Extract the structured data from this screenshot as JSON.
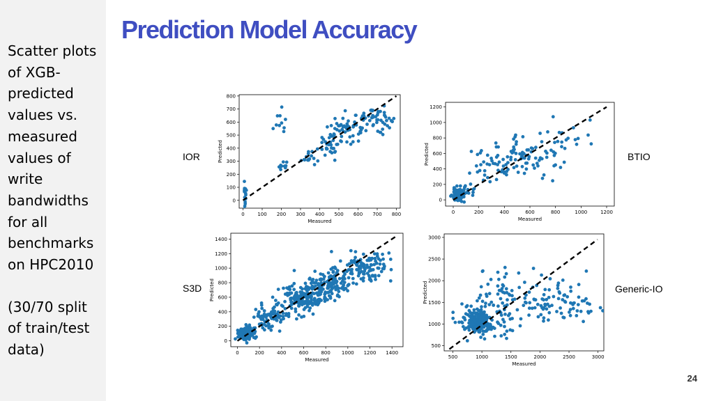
{
  "slide": {
    "title": "Prediction Model Accuracy",
    "sidebar_lines_1": [
      "Scatter plots",
      "of XGB-",
      "predicted",
      "values vs.",
      "measured",
      "values of",
      "write",
      "bandwidths",
      "for all",
      "benchmarks",
      "on HPC2010"
    ],
    "sidebar_lines_2": [
      "(30/70 split",
      "of train/test",
      "data)"
    ],
    "page_number": "24",
    "colors": {
      "title": "#3f4ec1",
      "points": "#1f77b4",
      "sidebar_bg": "#f2f2f2"
    }
  },
  "chart_data": [
    {
      "id": "ior",
      "type": "scatter",
      "label": "IOR",
      "xlabel": "Measured",
      "ylabel": "Predicted",
      "xlim": [
        -20,
        820
      ],
      "ylim": [
        -60,
        810
      ],
      "xticks": [
        0,
        100,
        200,
        300,
        400,
        500,
        600,
        700,
        800
      ],
      "yticks": [
        0,
        100,
        200,
        300,
        400,
        500,
        600,
        700,
        800
      ],
      "diagonal": [
        [
          0,
          0
        ],
        [
          800,
          800
        ]
      ],
      "clusters": [
        {
          "cx": 10,
          "cy": 40,
          "sx": 4,
          "sy": 60,
          "n": 16
        },
        {
          "cx": 190,
          "cy": 580,
          "sx": 25,
          "sy": 55,
          "n": 10
        },
        {
          "cx": 210,
          "cy": 260,
          "sx": 15,
          "sy": 25,
          "n": 10
        },
        {
          "cx": 340,
          "cy": 330,
          "sx": 25,
          "sy": 25,
          "n": 14
        },
        {
          "cx": 460,
          "cy": 440,
          "sx": 35,
          "sy": 50,
          "n": 34
        },
        {
          "cx": 560,
          "cy": 550,
          "sx": 50,
          "sy": 50,
          "n": 55
        },
        {
          "cx": 690,
          "cy": 630,
          "sx": 45,
          "sy": 40,
          "n": 45
        }
      ]
    },
    {
      "id": "btio",
      "type": "scatter",
      "label": "BTIO",
      "xlabel": "Measured",
      "ylabel": "Predicted",
      "xlim": [
        -60,
        1260
      ],
      "ylim": [
        -80,
        1260
      ],
      "xticks": [
        0,
        200,
        400,
        600,
        800,
        1000,
        1200
      ],
      "yticks": [
        0,
        200,
        400,
        600,
        800,
        1000,
        1200
      ],
      "diagonal": [
        [
          0,
          0
        ],
        [
          1200,
          1200
        ]
      ],
      "clusters": [
        {
          "cx": 40,
          "cy": 60,
          "sx": 25,
          "sy": 45,
          "n": 110
        },
        {
          "cx": 110,
          "cy": 120,
          "sx": 30,
          "sy": 40,
          "n": 15
        },
        {
          "cx": 350,
          "cy": 470,
          "sx": 90,
          "sy": 130,
          "n": 45
        },
        {
          "cx": 600,
          "cy": 560,
          "sx": 110,
          "sy": 150,
          "n": 60
        },
        {
          "cx": 870,
          "cy": 780,
          "sx": 120,
          "sy": 130,
          "n": 22
        }
      ]
    },
    {
      "id": "s3d",
      "type": "scatter",
      "label": "S3D",
      "xlabel": "Measured",
      "ylabel": "Predicted",
      "xlim": [
        -60,
        1500
      ],
      "ylim": [
        -80,
        1480
      ],
      "xticks": [
        0,
        200,
        400,
        600,
        800,
        1000,
        1200,
        1400
      ],
      "yticks": [
        0,
        200,
        400,
        600,
        800,
        1000,
        1200,
        1400
      ],
      "diagonal": [
        [
          0,
          0
        ],
        [
          1430,
          1430
        ]
      ],
      "clusters": [
        {
          "cx": 70,
          "cy": 100,
          "sx": 35,
          "sy": 45,
          "n": 130
        },
        {
          "cx": 300,
          "cy": 330,
          "sx": 80,
          "sy": 90,
          "n": 90
        },
        {
          "cx": 580,
          "cy": 580,
          "sx": 100,
          "sy": 110,
          "n": 160
        },
        {
          "cx": 840,
          "cy": 790,
          "sx": 100,
          "sy": 100,
          "n": 140
        },
        {
          "cx": 1150,
          "cy": 1030,
          "sx": 120,
          "sy": 100,
          "n": 110
        }
      ]
    },
    {
      "id": "generic-io",
      "type": "scatter",
      "label": "Generic-IO",
      "xlabel": "Measured",
      "ylabel": "Predicted",
      "xlim": [
        350,
        3100
      ],
      "ylim": [
        380,
        3080
      ],
      "xticks": [
        500,
        1000,
        1500,
        2000,
        2500,
        3000
      ],
      "yticks": [
        500,
        1000,
        1500,
        2000,
        2500,
        3000
      ],
      "diagonal": [
        [
          440,
          420
        ],
        [
          2990,
          2950
        ]
      ],
      "clusters": [
        {
          "cx": 950,
          "cy": 1050,
          "sx": 110,
          "sy": 140,
          "n": 220
        },
        {
          "cx": 1300,
          "cy": 1550,
          "sx": 220,
          "sy": 400,
          "n": 70
        },
        {
          "cx": 1900,
          "cy": 1500,
          "sx": 320,
          "sy": 300,
          "n": 55
        },
        {
          "cx": 2600,
          "cy": 1500,
          "sx": 260,
          "sy": 250,
          "n": 45
        },
        {
          "cx": 700,
          "cy": 1150,
          "sx": 150,
          "sy": 200,
          "n": 12
        }
      ]
    }
  ]
}
